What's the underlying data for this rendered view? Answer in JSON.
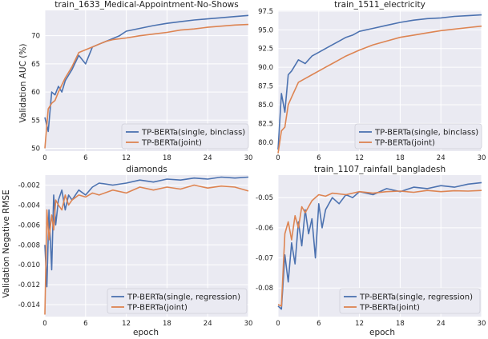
{
  "colors": {
    "single": "#4c72b0",
    "joint": "#dd8452",
    "background": "#eaeaf2"
  },
  "shared_labels": {
    "xlabel": "epoch",
    "ylabel_top": "Validation AUC (%)",
    "ylabel_bottom": "Validation Negative RMSE"
  },
  "chart_data": [
    {
      "type": "line",
      "title": "train_1633_Medical-Appointment-No-Shows",
      "xlim": [
        0,
        30
      ],
      "ylim": [
        49.5,
        74.5
      ],
      "xticks": [
        0,
        6,
        12,
        18,
        24,
        30
      ],
      "xtick_labels": [
        "0",
        "6",
        "12",
        "18",
        "24",
        "30"
      ],
      "yticks": [
        50,
        55,
        60,
        65,
        70
      ],
      "ytick_labels": [
        "50",
        "55",
        "60",
        "65",
        "70"
      ],
      "legend_position": "bottom-right",
      "series": [
        {
          "name": "TP-BERTa(single, binclass)",
          "color_key": "single",
          "x": [
            0,
            0.5,
            1,
            1.5,
            2,
            2.5,
            3,
            3.5,
            4,
            5,
            6,
            7,
            8,
            9,
            10,
            11,
            12,
            14,
            16,
            18,
            20,
            22,
            24,
            26,
            28,
            30
          ],
          "y": [
            55.5,
            53,
            60,
            59.5,
            61,
            60,
            62,
            63,
            64,
            66.5,
            65,
            68,
            68.5,
            69,
            69.5,
            70,
            70.8,
            71.3,
            71.8,
            72.2,
            72.5,
            72.8,
            73,
            73.2,
            73.4,
            73.6
          ]
        },
        {
          "name": "TP-BERTa(joint)",
          "color_key": "joint",
          "x": [
            0,
            0.5,
            1,
            1.5,
            2,
            3,
            4,
            5,
            6,
            7,
            8,
            9,
            10,
            12,
            14,
            16,
            18,
            20,
            22,
            24,
            26,
            28,
            30
          ],
          "y": [
            50,
            57,
            58,
            58.5,
            60,
            62.5,
            64.5,
            67,
            67.5,
            68,
            68.5,
            69,
            69.3,
            69.6,
            70,
            70.3,
            70.6,
            71,
            71.2,
            71.5,
            71.7,
            71.9,
            72
          ]
        }
      ]
    },
    {
      "type": "line",
      "title": "train_1511_electricity",
      "xlim": [
        0,
        30
      ],
      "ylim": [
        78.8,
        97.6
      ],
      "xticks": [
        0,
        6,
        12,
        18,
        24,
        30
      ],
      "xtick_labels": [
        "0",
        "6",
        "12",
        "18",
        "24",
        "30"
      ],
      "yticks": [
        80.0,
        82.5,
        85.0,
        87.5,
        90.0,
        92.5,
        95.0,
        97.5
      ],
      "ytick_labels": [
        "80.0",
        "82.5",
        "85.0",
        "87.5",
        "90.0",
        "92.5",
        "95.0",
        "97.5"
      ],
      "legend_position": "bottom-right",
      "series": [
        {
          "name": "TP-BERTa(single, binclass)",
          "color_key": "single",
          "x": [
            0,
            0.5,
            1,
            1.5,
            2,
            3,
            4,
            5,
            6,
            7,
            8,
            9,
            10,
            11,
            12,
            14,
            16,
            18,
            20,
            22,
            24,
            26,
            28,
            30
          ],
          "y": [
            79,
            86.5,
            84,
            89,
            89.5,
            91,
            90.5,
            91.5,
            92,
            92.5,
            93,
            93.5,
            94,
            94.3,
            94.8,
            95.2,
            95.6,
            96,
            96.3,
            96.5,
            96.6,
            96.8,
            96.9,
            97
          ]
        },
        {
          "name": "TP-BERTa(joint)",
          "color_key": "joint",
          "x": [
            0,
            0.5,
            1,
            1.5,
            2,
            3,
            4,
            5,
            6,
            7,
            8,
            9,
            10,
            12,
            14,
            16,
            18,
            20,
            22,
            24,
            26,
            28,
            30
          ],
          "y": [
            78.5,
            81.5,
            82,
            85,
            86,
            88,
            88.5,
            89,
            89.5,
            90,
            90.5,
            91,
            91.5,
            92.3,
            93,
            93.5,
            94,
            94.3,
            94.6,
            94.9,
            95.1,
            95.3,
            95.5
          ]
        }
      ]
    },
    {
      "type": "line",
      "title": "diamonds",
      "xlim": [
        0,
        30
      ],
      "ylim": [
        -0.0152,
        -0.001
      ],
      "xticks": [
        0,
        6,
        12,
        18,
        24,
        30
      ],
      "xtick_labels": [
        "0",
        "6",
        "12",
        "18",
        "24",
        "30"
      ],
      "yticks": [
        -0.014,
        -0.012,
        -0.01,
        -0.008,
        -0.006,
        -0.004,
        -0.002
      ],
      "ytick_labels": [
        "-0.014",
        "-0.012",
        "-0.010",
        "-0.008",
        "-0.006",
        "-0.004",
        "-0.002"
      ],
      "legend_position": "bottom-right",
      "series": [
        {
          "name": "TP-BERTa(single, regression)",
          "color_key": "single",
          "x": [
            0,
            0.3,
            0.6,
            1,
            1.3,
            1.6,
            2,
            2.5,
            3,
            3.5,
            4,
            5,
            6,
            7,
            8,
            10,
            12,
            14,
            16,
            18,
            20,
            22,
            24,
            26,
            28,
            30
          ],
          "y": [
            -0.008,
            -0.0122,
            -0.0045,
            -0.0105,
            -0.003,
            -0.006,
            -0.0035,
            -0.0025,
            -0.0045,
            -0.003,
            -0.0035,
            -0.0025,
            -0.003,
            -0.0022,
            -0.0018,
            -0.002,
            -0.0018,
            -0.0015,
            -0.0017,
            -0.0014,
            -0.0015,
            -0.0013,
            -0.0014,
            -0.0012,
            -0.0013,
            -0.0012
          ]
        },
        {
          "name": "TP-BERTa(joint)",
          "color_key": "joint",
          "x": [
            0,
            0.3,
            0.6,
            1,
            1.3,
            1.6,
            2,
            2.5,
            3,
            3.5,
            4,
            5,
            6,
            7,
            8,
            10,
            12,
            14,
            16,
            18,
            20,
            22,
            24,
            26,
            28,
            30
          ],
          "y": [
            -0.015,
            -0.0045,
            -0.0075,
            -0.005,
            -0.0065,
            -0.0035,
            -0.004,
            -0.0045,
            -0.003,
            -0.004,
            -0.0035,
            -0.003,
            -0.0032,
            -0.0028,
            -0.003,
            -0.0025,
            -0.0028,
            -0.0022,
            -0.0025,
            -0.0022,
            -0.0024,
            -0.002,
            -0.0023,
            -0.0021,
            -0.0022,
            -0.0026
          ]
        }
      ]
    },
    {
      "type": "line",
      "title": "train_1107_rainfall_bangladesh",
      "xlim": [
        0,
        30
      ],
      "ylim": [
        -0.0895,
        -0.0425
      ],
      "xticks": [
        0,
        6,
        12,
        18,
        24,
        30
      ],
      "xtick_labels": [
        "0",
        "6",
        "12",
        "18",
        "24",
        "30"
      ],
      "yticks": [
        -0.08,
        -0.07,
        -0.06,
        -0.05
      ],
      "ytick_labels": [
        "-0.08",
        "-0.07",
        "-0.06",
        "-0.05"
      ],
      "legend_position": "bottom-right",
      "series": [
        {
          "name": "TP-BERTa(single, regression)",
          "color_key": "single",
          "x": [
            0,
            0.5,
            1,
            1.5,
            2,
            2.5,
            3,
            3.5,
            4,
            4.5,
            5,
            5.5,
            6,
            6.5,
            7,
            8,
            9,
            10,
            11,
            12,
            14,
            16,
            18,
            20,
            22,
            24,
            26,
            28,
            30
          ],
          "y": [
            -0.086,
            -0.087,
            -0.069,
            -0.078,
            -0.065,
            -0.072,
            -0.058,
            -0.066,
            -0.054,
            -0.062,
            -0.057,
            -0.07,
            -0.052,
            -0.06,
            -0.054,
            -0.05,
            -0.052,
            -0.049,
            -0.05,
            -0.048,
            -0.049,
            -0.047,
            -0.048,
            -0.0465,
            -0.047,
            -0.046,
            -0.0465,
            -0.0455,
            -0.045
          ]
        },
        {
          "name": "TP-BERTa(joint)",
          "color_key": "joint",
          "x": [
            0,
            0.5,
            1,
            1.5,
            2,
            2.5,
            3,
            3.5,
            4,
            5,
            6,
            7,
            8,
            10,
            12,
            14,
            16,
            18,
            20,
            22,
            24,
            26,
            28,
            30
          ],
          "y": [
            -0.0855,
            -0.086,
            -0.062,
            -0.058,
            -0.064,
            -0.056,
            -0.06,
            -0.053,
            -0.055,
            -0.051,
            -0.049,
            -0.0495,
            -0.0485,
            -0.049,
            -0.048,
            -0.0485,
            -0.048,
            -0.0478,
            -0.0482,
            -0.0476,
            -0.048,
            -0.0477,
            -0.0478,
            -0.0476
          ]
        }
      ]
    }
  ]
}
